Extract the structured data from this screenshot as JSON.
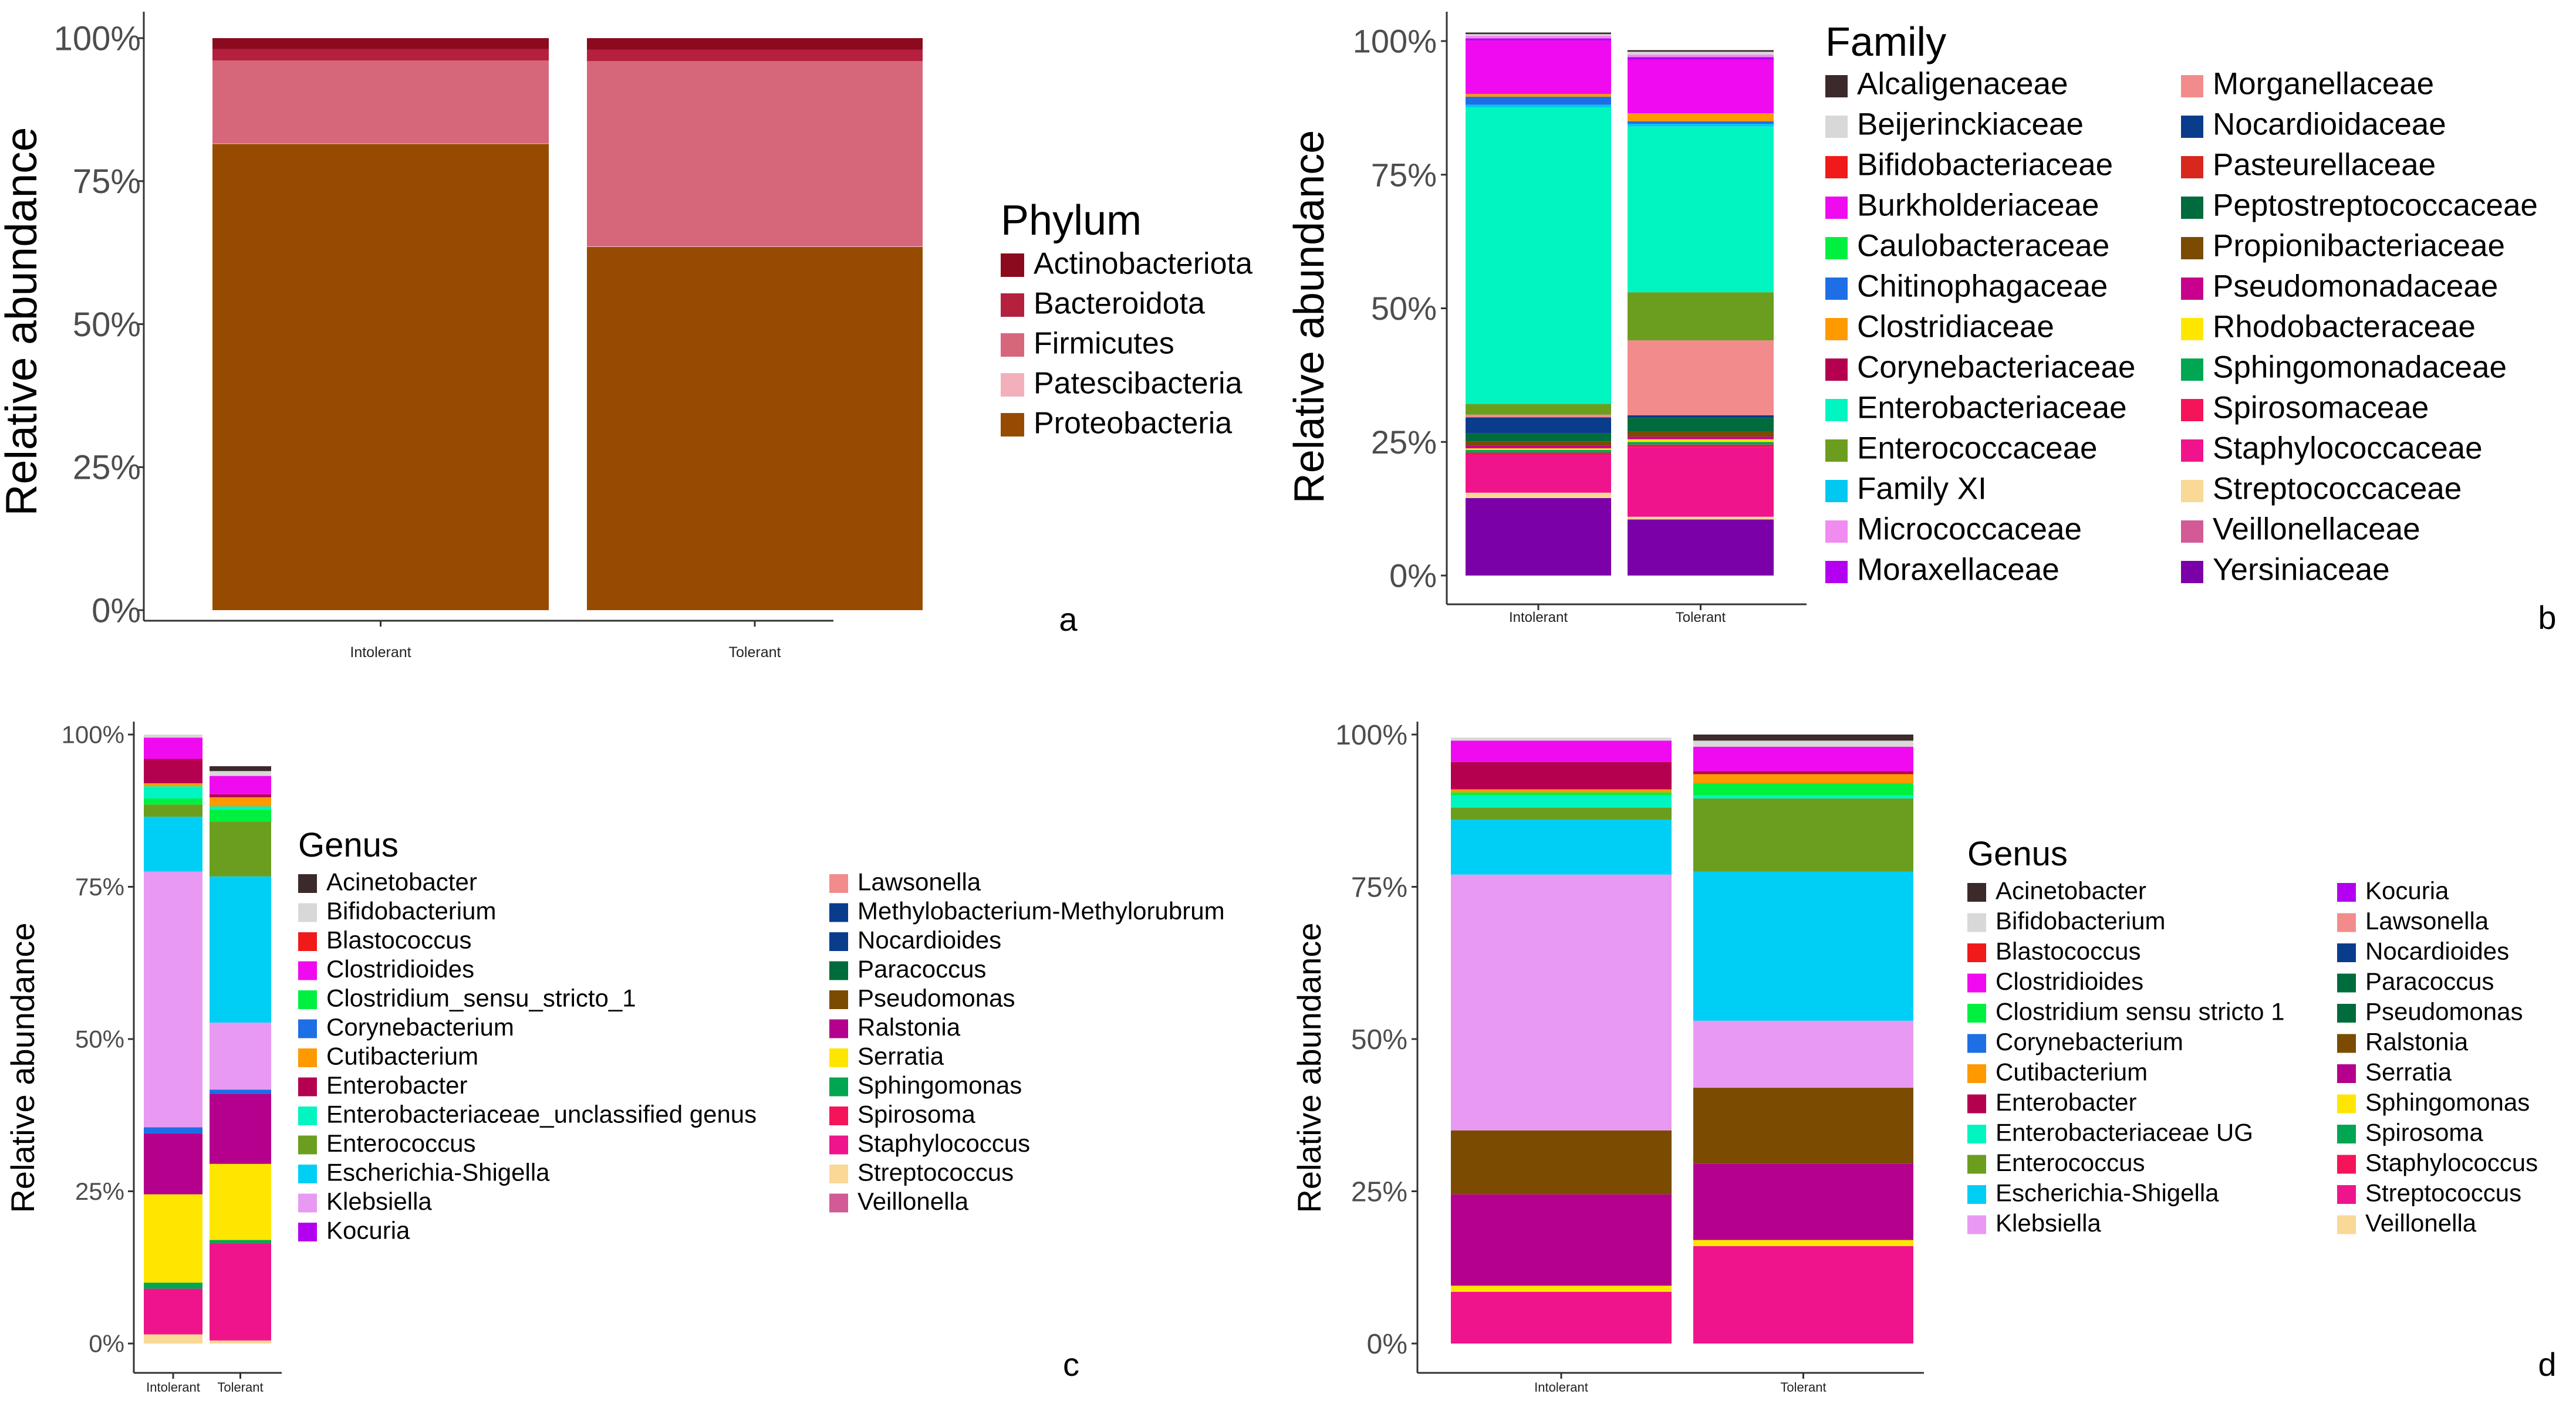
{
  "chart_data": [
    {
      "panel": "a",
      "type": "bar",
      "stacked": true,
      "percent": true,
      "ylabel": "Relative abundance",
      "yticks": [
        "0%",
        "25%",
        "50%",
        "75%",
        "100%"
      ],
      "ylim": [
        0,
        100
      ],
      "categories": [
        "Intolerant",
        "Tolerant"
      ],
      "legend_title": "Phylum",
      "legend_position": "right",
      "legend_columns": 1,
      "legend_labels": [
        "Actinobacteriota",
        "Bacteroidota",
        "Firmicutes",
        "Patescibacteria",
        "Proteobacteria"
      ],
      "series": [
        {
          "name": "Proteobacteria",
          "color": "#964B00",
          "values": [
            81.5,
            63.5
          ]
        },
        {
          "name": "Patescibacteria",
          "color": "#F2B1BA",
          "values": [
            0.1,
            0.1
          ]
        },
        {
          "name": "Firmicutes",
          "color": "#D6677A",
          "values": [
            14.5,
            32.4
          ]
        },
        {
          "name": "Bacteroidota",
          "color": "#B5203E",
          "values": [
            2.0,
            2.0
          ]
        },
        {
          "name": "Actinobacteriota",
          "color": "#8B0A1E",
          "values": [
            1.9,
            2.0
          ]
        }
      ]
    },
    {
      "panel": "b",
      "type": "bar",
      "stacked": true,
      "percent": true,
      "ylabel": "Relative abundance",
      "yticks": [
        "0%",
        "25%",
        "50%",
        "75%",
        "100%"
      ],
      "ylim": [
        0,
        100
      ],
      "categories": [
        "Intolerant",
        "Tolerant"
      ],
      "legend_title": "Family",
      "legend_position": "right",
      "legend_columns": 2,
      "legend_labels": [
        "Alcaligenaceae",
        "Beijerinckiaceae",
        "Bifidobacteriaceae",
        "Burkholderiaceae",
        "Caulobacteraceae",
        "Chitinophagaceae",
        "Clostridiaceae",
        "Corynebacteriaceae",
        "Enterobacteriaceae",
        "Enterococcaceae",
        "Family XI",
        "Micrococcaceae",
        "Moraxellaceae",
        "Morganellaceae",
        "Nocardioidaceae",
        "Pasteurellaceae",
        "Peptostreptococcaceae",
        "Propionibacteriaceae",
        "Pseudomonadaceae",
        "Rhodobacteraceae",
        "Sphingomonadaceae",
        "Spirosomaceae",
        "Staphylococcaceae",
        "Streptococcaceae",
        "Veillonellaceae",
        "Yersiniaceae"
      ],
      "series": [
        {
          "name": "Yersiniaceae",
          "color": "#7B00A8",
          "values": [
            14.5,
            10.5
          ]
        },
        {
          "name": "Streptococcaceae",
          "color": "#FAD896",
          "values": [
            1.0,
            0.5
          ]
        },
        {
          "name": "Staphylococcaceae",
          "color": "#F0148C",
          "values": [
            7.0,
            13.0
          ]
        },
        {
          "name": "Spirosomaceae",
          "color": "#F5145A",
          "values": [
            0.5,
            0.5
          ]
        },
        {
          "name": "Sphingomonadaceae",
          "color": "#00A651",
          "values": [
            0.5,
            0.5
          ]
        },
        {
          "name": "Rhodobacteraceae",
          "color": "#FFE600",
          "values": [
            0.3,
            0.5
          ]
        },
        {
          "name": "Pseudomonadaceae",
          "color": "#C8008C",
          "values": [
            0.5,
            0.5
          ]
        },
        {
          "name": "Propionibacteriaceae",
          "color": "#7A4B00",
          "values": [
            0.8,
            1.0
          ]
        },
        {
          "name": "Peptostreptococcaceae",
          "color": "#006B3C",
          "values": [
            1.5,
            2.5
          ]
        },
        {
          "name": "Nocardioidaceae",
          "color": "#0A3C8C",
          "values": [
            3.0,
            0.5
          ]
        },
        {
          "name": "Morganellaceae",
          "color": "#F28C8C",
          "values": [
            0.5,
            14.0
          ]
        },
        {
          "name": "Enterococcaceae",
          "color": "#6B9E1E",
          "values": [
            2.0,
            9.0
          ]
        },
        {
          "name": "Enterobacteriaceae",
          "color": "#00F5C0",
          "values": [
            55.5,
            31.0
          ]
        },
        {
          "name": "Family XI",
          "color": "#00C8F0",
          "values": [
            0.5,
            0.5
          ]
        },
        {
          "name": "Chitinophagaceae",
          "color": "#1E6EE6",
          "values": [
            1.5,
            0.5
          ]
        },
        {
          "name": "Clostridiaceae",
          "color": "#FF9900",
          "values": [
            0.5,
            1.5
          ]
        },
        {
          "name": "Burkholderiaceae",
          "color": "#F00AF0",
          "values": [
            10.0,
            10.0
          ]
        },
        {
          "name": "Moraxellaceae",
          "color": "#B400F0",
          "values": [
            0.4,
            0.5
          ]
        },
        {
          "name": "Micrococcaceae",
          "color": "#F08CF0",
          "values": [
            0.5,
            0.5
          ]
        },
        {
          "name": "Beijerinckiaceae",
          "color": "#D8D8D8",
          "values": [
            0.3,
            0.5
          ]
        },
        {
          "name": "Alcaligenaceae",
          "color": "#3C2A2A",
          "values": [
            0.3,
            0.3
          ]
        }
      ]
    },
    {
      "panel": "c",
      "type": "bar",
      "stacked": true,
      "percent": true,
      "ylabel": "Relative abundance",
      "yticks": [
        "0%",
        "25%",
        "50%",
        "75%",
        "100%"
      ],
      "ylim": [
        0,
        100
      ],
      "categories": [
        "Intolerant",
        "Tolerant"
      ],
      "legend_title": "Genus",
      "legend_position": "right",
      "legend_columns": 2,
      "legend_labels": [
        "Acinetobacter",
        "Bifidobacterium",
        "Blastococcus",
        "Clostridioides",
        "Clostridium_sensu_stricto_1",
        "Corynebacterium",
        "Cutibacterium",
        "Enterobacter",
        "Enterobacteriaceae_unclassified genus",
        "Enterococcus",
        "Escherichia-Shigella",
        "Klebsiella",
        "Kocuria",
        "Lawsonella",
        "Methylobacterium-Methylorubrum",
        "Nocardioides",
        "Paracoccus",
        "Pseudomonas",
        "Ralstonia",
        "Serratia",
        "Sphingomonas",
        "Spirosoma",
        "Staphylococcus",
        "Streptococcus",
        "Veillonella"
      ],
      "series": [
        {
          "name": "Streptococcus",
          "color": "#FAD896",
          "values": [
            1.5,
            0.5
          ]
        },
        {
          "name": "Staphylococcus",
          "color": "#F0148C",
          "values": [
            7.5,
            16.0
          ]
        },
        {
          "name": "Sphingomonas",
          "color": "#00A651",
          "values": [
            1.0,
            0.5
          ]
        },
        {
          "name": "Serratia",
          "color": "#FFE600",
          "values": [
            14.5,
            12.5
          ]
        },
        {
          "name": "Ralstonia",
          "color": "#B4008C",
          "values": [
            10.0,
            11.5
          ]
        },
        {
          "name": "Corynebacterium",
          "color": "#1E6EE6",
          "values": [
            1.0,
            0.7
          ]
        },
        {
          "name": "Klebsiella",
          "color": "#E89AF2",
          "values": [
            42.0,
            11.0
          ]
        },
        {
          "name": "Escherichia-Shigella",
          "color": "#00CFF5",
          "values": [
            9.0,
            24.0
          ]
        },
        {
          "name": "Enterococcus",
          "color": "#6B9E1E",
          "values": [
            2.0,
            9.0
          ]
        },
        {
          "name": "Clostridium_sensu_stricto_1",
          "color": "#00F040",
          "values": [
            1.0,
            2.0
          ]
        },
        {
          "name": "Enterobacteriaceae_unclassified genus",
          "color": "#00F5C0",
          "values": [
            2.0,
            0.5
          ]
        },
        {
          "name": "Cutibacterium",
          "color": "#FF9900",
          "values": [
            0.5,
            1.5
          ]
        },
        {
          "name": "Enterobacter",
          "color": "#B4004E",
          "values": [
            4.0,
            0.5
          ]
        },
        {
          "name": "Clostridioides",
          "color": "#F00AF0",
          "values": [
            3.5,
            3.0
          ]
        },
        {
          "name": "Bifidobacterium",
          "color": "#D8D8D8",
          "values": [
            0.5,
            0.8
          ]
        },
        {
          "name": "Acinetobacter",
          "color": "#3C2A2A",
          "values": [
            0.0,
            0.8
          ]
        }
      ]
    },
    {
      "panel": "d",
      "type": "bar",
      "stacked": true,
      "percent": true,
      "ylabel": "Relative abundance",
      "yticks": [
        "0%",
        "25%",
        "50%",
        "75%",
        "100%"
      ],
      "ylim": [
        0,
        100
      ],
      "categories": [
        "Intolerant",
        "Tolerant"
      ],
      "legend_title": "Genus",
      "legend_position": "right",
      "legend_columns": 2,
      "legend_labels": [
        "Acinetobacter",
        "Bifidobacterium",
        "Blastococcus",
        "Clostridioides",
        "Clostridium sensu stricto 1",
        "Corynebacterium",
        "Cutibacterium",
        "Enterobacter",
        "Enterobacteriaceae UG",
        "Enterococcus",
        "Escherichia-Shigella",
        "Klebsiella",
        "Kocuria",
        "Lawsonella",
        "Nocardioides",
        "Paracoccus",
        "Pseudomonas",
        "Ralstonia",
        "Serratia",
        "Sphingomonas",
        "Spirosoma",
        "Staphylococcus",
        "Streptococcus",
        "Veillonella"
      ],
      "series": [
        {
          "name": "Streptococcus",
          "color": "#F0148C",
          "values": [
            8.5,
            16.0
          ]
        },
        {
          "name": "Sphingomonas",
          "color": "#FFE600",
          "values": [
            1.0,
            1.0
          ]
        },
        {
          "name": "Serratia",
          "color": "#B4008C",
          "values": [
            15.0,
            12.5
          ]
        },
        {
          "name": "Ralstonia",
          "color": "#7A4B00",
          "values": [
            10.5,
            12.5
          ]
        },
        {
          "name": "Klebsiella",
          "color": "#E89AF2",
          "values": [
            42.0,
            11.0
          ]
        },
        {
          "name": "Escherichia-Shigella",
          "color": "#00CFF5",
          "values": [
            9.0,
            24.5
          ]
        },
        {
          "name": "Enterococcus",
          "color": "#6B9E1E",
          "values": [
            2.0,
            12.0
          ]
        },
        {
          "name": "Enterobacteriaceae UG",
          "color": "#00F5C0",
          "values": [
            2.0,
            0.5
          ]
        },
        {
          "name": "Clostridium sensu stricto 1",
          "color": "#00F040",
          "values": [
            0.5,
            2.0
          ]
        },
        {
          "name": "Cutibacterium",
          "color": "#FF9900",
          "values": [
            0.5,
            1.5
          ]
        },
        {
          "name": "Enterobacter",
          "color": "#B4004E",
          "values": [
            4.5,
            0.5
          ]
        },
        {
          "name": "Clostridioides",
          "color": "#F00AF0",
          "values": [
            3.5,
            4.0
          ]
        },
        {
          "name": "Bifidobacterium",
          "color": "#D8D8D8",
          "values": [
            0.5,
            1.0
          ]
        },
        {
          "name": "Acinetobacter",
          "color": "#3C2A2A",
          "values": [
            0.0,
            1.0
          ]
        }
      ]
    }
  ],
  "legend_colors": {
    "Acinetobacter": "#3C2A2A",
    "Alcaligenaceae": "#3C2A2A",
    "Actinobacteriota": "#8B0A1E",
    "Bacteroidota": "#B5203E",
    "Firmicutes": "#D6677A",
    "Patescibacteria": "#F2B1BA",
    "Proteobacteria": "#964B00",
    "Beijerinckiaceae": "#D8D8D8",
    "Bifidobacterium": "#D8D8D8",
    "Bifidobacteriaceae": "#F01A1A",
    "Blastococcus": "#F01A1A",
    "Burkholderiaceae": "#F00AF0",
    "Clostridioides": "#F00AF0",
    "Caulobacteraceae": "#00F040",
    "Clostridium_sensu_stricto_1": "#00F040",
    "Clostridium sensu stricto 1": "#00F040",
    "Chitinophagaceae": "#1E6EE6",
    "Corynebacterium": "#1E6EE6",
    "Clostridiaceae": "#FF9900",
    "Cutibacterium": "#FF9900",
    "Corynebacteriaceae": "#B4004E",
    "Enterobacter": "#B4004E",
    "Enterobacteriaceae": "#00F5C0",
    "Enterobacteriaceae_unclassified genus": "#00F5C0",
    "Enterobacteriaceae UG": "#00F5C0",
    "Enterococcaceae": "#6B9E1E",
    "Enterococcus": "#6B9E1E",
    "Family XI": "#00C8F0",
    "Escherichia-Shigella": "#00CFF5",
    "Micrococcaceae": "#F08CF0",
    "Klebsiella": "#E89AF2",
    "Moraxellaceae": "#B400F0",
    "Kocuria": "#B400F0",
    "Morganellaceae": "#F28C8C",
    "Lawsonella": "#F28C8C",
    "Nocardioidaceae": "#0A3C8C",
    "Methylobacterium-Methylorubrum": "#0A3C8C",
    "Nocardioides": "#0A3C8C",
    "Pasteurellaceae": "#D8281E",
    "Peptostreptococcaceae": "#006B3C",
    "Paracoccus": "#006B3C",
    "Propionibacteriaceae": "#7A4B00",
    "Pseudomonas": "#7A4B00",
    "Pseudomonadaceae": "#C8008C",
    "Ralstonia": "#B4008C",
    "Rhodobacteraceae": "#FFE600",
    "Serratia": "#FFE600",
    "Sphingomonadaceae": "#00A651",
    "Sphingomonas": "#00A651",
    "Spirosomaceae": "#F5145A",
    "Spirosoma": "#F5145A",
    "Staphylococcaceae": "#F0148C",
    "Staphylococcus": "#F0148C",
    "Streptococcaceae": "#FAD896",
    "Streptococcus": "#FAD896",
    "Veillonellaceae": "#D25A96",
    "Veillonella": "#D25A96",
    "Yersiniaceae": "#7B00A8"
  },
  "legend_colors_d": {
    "Acinetobacter": "#3C2A2A",
    "Bifidobacterium": "#D8D8D8",
    "Blastococcus": "#F01A1A",
    "Clostridioides": "#F00AF0",
    "Clostridium sensu stricto 1": "#00F040",
    "Corynebacterium": "#1E6EE6",
    "Cutibacterium": "#FF9900",
    "Enterobacter": "#B4004E",
    "Enterobacteriaceae UG": "#00F5C0",
    "Enterococcus": "#6B9E1E",
    "Escherichia-Shigella": "#00CFF5",
    "Klebsiella": "#E89AF2",
    "Kocuria": "#B400F0",
    "Lawsonella": "#F28C8C",
    "Nocardioides": "#0A3C8C",
    "Paracoccus": "#006B3C",
    "Pseudomonas": "#006B3C",
    "Ralstonia": "#7A4B00",
    "Serratia": "#B4008C",
    "Sphingomonas": "#FFE600",
    "Spirosoma": "#00A651",
    "Staphylococcus": "#F5145A",
    "Streptococcus": "#F0148C",
    "Veillonella": "#FAD896"
  }
}
